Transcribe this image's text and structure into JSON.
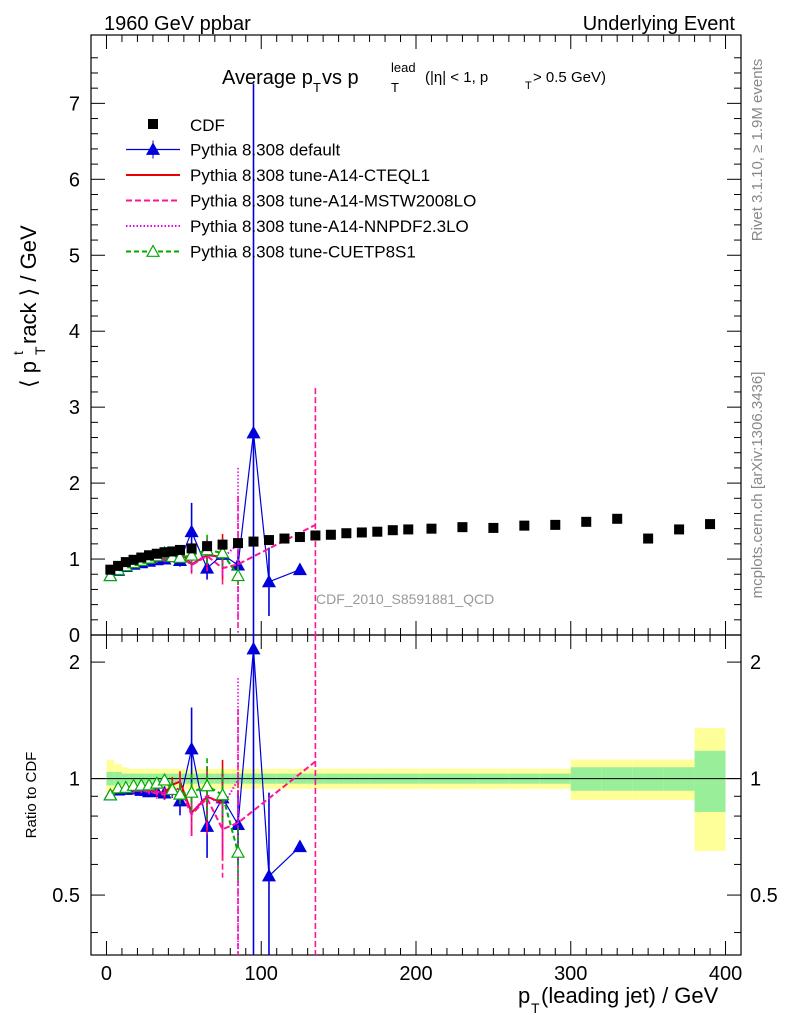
{
  "header": {
    "left": "1960 GeV ppbar",
    "right": "Underlying Event",
    "side_top": "Rivet 3.1.10, ≥ 1.9M events",
    "side_bottom": "mcplots.cern.ch [arXiv:1306.3436]",
    "watermark": "CDF_2010_S8591881_QCD"
  },
  "chart_data": {
    "type": "scatter",
    "title": {
      "main": "Average p",
      "sub_T": "T",
      "vs": " vs p",
      "sup_lead": "lead",
      "cut1": "(|η| < 1, p",
      "cut2": " > 0.5 GeV)"
    },
    "xlabel": {
      "main": "p",
      "sub": "T",
      "rest": "(leading jet) / GeV"
    },
    "ylabel": {
      "main": "⟨ p",
      "sub": "T",
      "sup": "t",
      "rest": "rack ⟩ / GeV"
    },
    "ratio_ylabel": "Ratio to CDF",
    "xlim": [
      -10,
      410
    ],
    "ylim": [
      0,
      7.9
    ],
    "ratio_ylim": [
      0.35,
      2.35
    ],
    "ratio_scale": "log",
    "x_ticks": [
      "0",
      "100",
      "200",
      "300",
      "400"
    ],
    "y_ticks": [
      "0",
      "1",
      "2",
      "3",
      "4",
      "5",
      "6",
      "7"
    ],
    "ratio_ticks": [
      "0.5",
      "1",
      "2"
    ],
    "legend_position": "top-left",
    "data": {
      "name": "CDF",
      "color": "#000000",
      "x": [
        2.5,
        7.5,
        12.5,
        17.5,
        22.5,
        27.5,
        32.5,
        37.5,
        42.5,
        47.5,
        55,
        65,
        75,
        85,
        95,
        105,
        115,
        125,
        135,
        145,
        155,
        165,
        175,
        185,
        195,
        210,
        230,
        250,
        270,
        290,
        310,
        330,
        350,
        370,
        390
      ],
      "y": [
        0.86,
        0.91,
        0.96,
        0.99,
        1.02,
        1.05,
        1.07,
        1.09,
        1.1,
        1.12,
        1.14,
        1.17,
        1.19,
        1.21,
        1.23,
        1.25,
        1.27,
        1.29,
        1.31,
        1.32,
        1.34,
        1.35,
        1.36,
        1.38,
        1.39,
        1.4,
        1.42,
        1.41,
        1.44,
        1.45,
        1.49,
        1.53,
        1.27,
        1.39,
        1.46
      ],
      "band_stat": [
        0.04,
        0.04,
        0.03,
        0.03,
        0.03,
        0.03,
        0.03,
        0.03,
        0.03,
        0.03,
        0.03,
        0.03,
        0.03,
        0.03,
        0.03,
        0.03,
        0.03,
        0.03,
        0.03,
        0.03,
        0.03,
        0.03,
        0.03,
        0.03,
        0.03,
        0.03,
        0.03,
        0.03,
        0.03,
        0.03,
        0.07,
        0.07,
        0.07,
        0.07,
        0.18
      ],
      "band_total": [
        0.12,
        0.09,
        0.07,
        0.06,
        0.06,
        0.06,
        0.06,
        0.06,
        0.06,
        0.06,
        0.06,
        0.06,
        0.06,
        0.06,
        0.06,
        0.06,
        0.06,
        0.06,
        0.06,
        0.06,
        0.06,
        0.06,
        0.06,
        0.06,
        0.06,
        0.06,
        0.06,
        0.06,
        0.06,
        0.06,
        0.12,
        0.12,
        0.12,
        0.12,
        0.35
      ]
    },
    "series": [
      {
        "name": "Pythia 8.308 default",
        "color": "#0000dd",
        "dash": "",
        "marker": "triangle",
        "x": [
          2.5,
          7.5,
          12.5,
          17.5,
          22.5,
          27.5,
          32.5,
          37.5,
          42.5,
          47.5,
          55,
          65,
          75,
          85,
          95,
          105,
          125
        ],
        "y": [
          0.78,
          0.85,
          0.9,
          0.93,
          0.95,
          0.97,
          0.99,
          1.0,
          1.03,
          0.98,
          1.36,
          0.88,
          1.06,
          0.92,
          2.66,
          0.7,
          0.86
        ],
        "err": [
          0.02,
          0.02,
          0.02,
          0.02,
          0.03,
          0.03,
          0.03,
          0.04,
          0.05,
          0.08,
          0.38,
          0.15,
          0.18,
          0.2,
          4.6,
          0.45,
          0
        ]
      },
      {
        "name": "Pythia 8.308 tune-A14-CTEQL1",
        "color": "#ee0000",
        "dash": "",
        "marker": "none",
        "x": [
          2.5,
          7.5,
          12.5,
          17.5,
          22.5,
          27.5,
          32.5,
          37.5,
          42.5,
          47.5,
          55,
          65,
          75
        ],
        "y": [
          0.79,
          0.86,
          0.9,
          0.93,
          0.96,
          0.98,
          0.99,
          1.0,
          1.06,
          1.1,
          0.93,
          1.05,
          1.03
        ],
        "err": [
          0.01,
          0.01,
          0.01,
          0.02,
          0.02,
          0.02,
          0.03,
          0.03,
          0.05,
          0.07,
          0.12,
          0.2,
          0.3
        ]
      },
      {
        "name": "Pythia 8.308 tune-A14-MSTW2008LO",
        "color": "#ff1493",
        "dash": "6,3",
        "marker": "none",
        "x": [
          2.5,
          7.5,
          12.5,
          17.5,
          22.5,
          27.5,
          32.5,
          37.5,
          42.5,
          47.5,
          55,
          65,
          75,
          85,
          135
        ],
        "y": [
          0.77,
          0.85,
          0.89,
          0.92,
          0.95,
          0.97,
          0.98,
          0.99,
          1.04,
          1.05,
          0.92,
          1.04,
          0.88,
          0.93,
          1.45
        ],
        "err": [
          0.01,
          0.01,
          0.01,
          0.02,
          0.02,
          0.02,
          0.03,
          0.03,
          0.05,
          0.07,
          0.12,
          0.2,
          0.22,
          0.9,
          1.8
        ]
      },
      {
        "name": "Pythia 8.308 tune-A14-NNPDF2.3LO",
        "color": "#ee00ee",
        "dash": "1.5,2",
        "marker": "none",
        "x": [
          2.5,
          7.5,
          12.5,
          17.5,
          22.5,
          27.5,
          32.5,
          37.5,
          42.5,
          47.5,
          55,
          65,
          75,
          85
        ],
        "y": [
          0.78,
          0.85,
          0.89,
          0.92,
          0.95,
          0.97,
          0.99,
          1.0,
          1.03,
          1.05,
          0.93,
          1.06,
          1.01,
          1.2
        ],
        "err": [
          0.01,
          0.01,
          0.01,
          0.02,
          0.02,
          0.02,
          0.03,
          0.03,
          0.05,
          0.07,
          0.12,
          0.2,
          0.25,
          1.0
        ]
      },
      {
        "name": "Pythia 8.308 tune-CUETP8S1",
        "color": "#00aa00",
        "dash": "5,3",
        "marker": "open-triangle",
        "x": [
          2.5,
          7.5,
          12.5,
          17.5,
          22.5,
          27.5,
          32.5,
          37.5,
          42.5,
          47.5,
          55,
          65,
          75,
          85
        ],
        "y": [
          0.78,
          0.86,
          0.91,
          0.95,
          0.98,
          1.01,
          1.04,
          1.08,
          1.03,
          1.02,
          1.05,
          1.12,
          1.08,
          0.78
        ],
        "err": [
          0.01,
          0.01,
          0.01,
          0.02,
          0.02,
          0.02,
          0.03,
          0.03,
          0.05,
          0.07,
          0.12,
          0.2,
          0.18,
          0.12
        ]
      }
    ]
  }
}
